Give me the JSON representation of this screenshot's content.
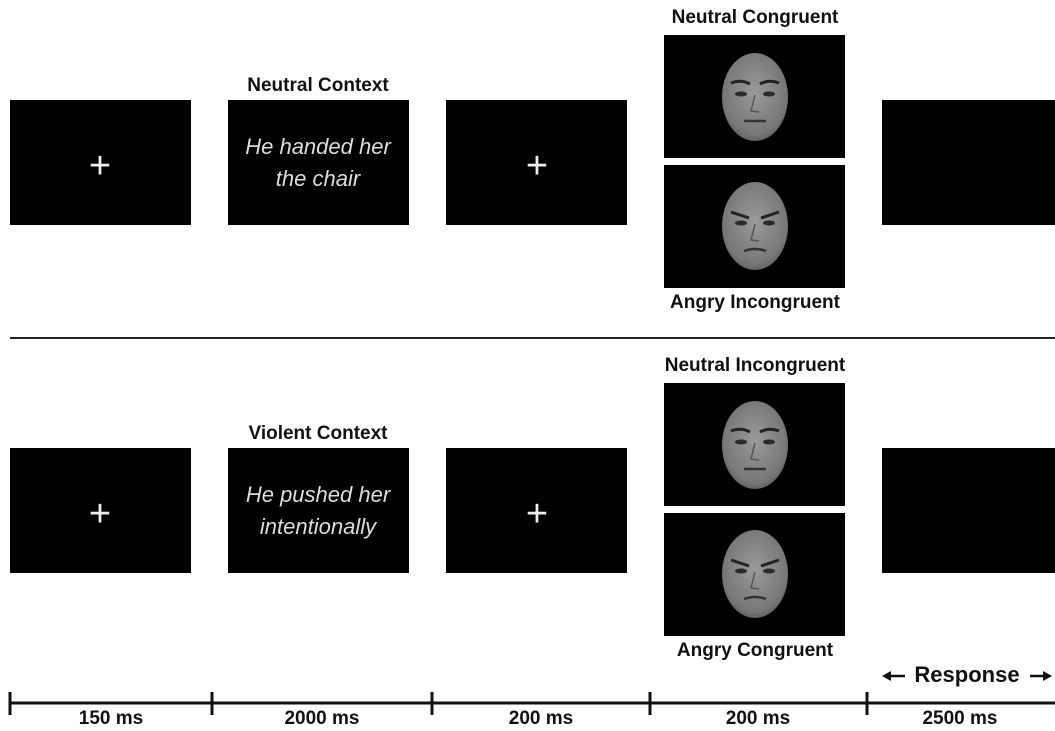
{
  "trials": [
    {
      "fixation": "+",
      "context_label": "Neutral Context",
      "sentence": [
        "He handed her",
        "the chair"
      ],
      "fixation_2": "+",
      "faces": {
        "top_label": "Neutral Congruent",
        "bottom_label": "Angry Incongruent"
      }
    },
    {
      "fixation": "+",
      "context_label": "Violent Context",
      "sentence": [
        "He pushed her",
        "intentionally"
      ],
      "fixation_2": "+",
      "faces": {
        "top_label": "Neutral Incongruent",
        "bottom_label": "Angry Congruent"
      }
    }
  ],
  "timeline": {
    "durations": [
      "150 ms",
      "2000 ms",
      "200 ms",
      "200 ms",
      "2500 ms"
    ],
    "response": "Response"
  }
}
